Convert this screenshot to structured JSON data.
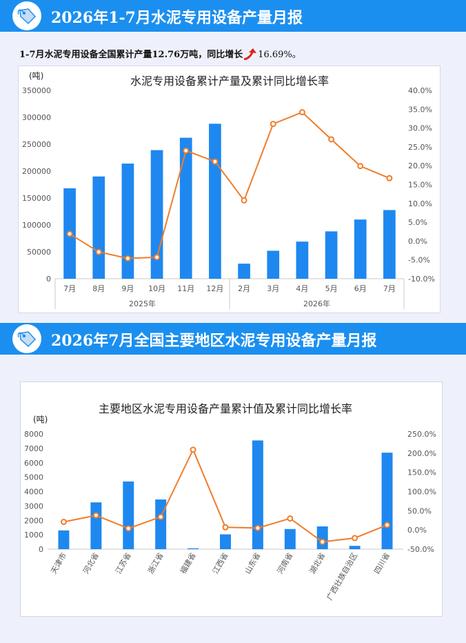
{
  "banners": {
    "top_title": "2026年1-7月水泥专用设备产量月报",
    "bottom_title": "2026年7月全国主要地区水泥专用设备产量月报"
  },
  "summary": {
    "text": "1-7月水泥专用设备全国累计产量12.76万吨，同比增长",
    "percent": "16.69%。"
  },
  "colors": {
    "bar": "#1e88f0",
    "line": "#f07c2a",
    "banner": "#1b8ff0"
  },
  "icons": {
    "badge": "price-tag-icon",
    "trend": "up-arrow-icon"
  },
  "chart_data": [
    {
      "type": "bar",
      "title": "水泥专用设备累计产量及累计同比增长率",
      "ylabel": "(吨)",
      "categories": [
        "7月",
        "8月",
        "9月",
        "10月",
        "11月",
        "12月",
        "2月",
        "3月",
        "4月",
        "5月",
        "6月",
        "7月"
      ],
      "groups": [
        {
          "label": "2025年",
          "count": 6
        },
        {
          "label": "2026年",
          "count": 6
        }
      ],
      "series": [
        {
          "axis": "left",
          "type": "bar",
          "values": [
            168000,
            190000,
            214000,
            239000,
            262000,
            288000,
            28000,
            52000,
            69000,
            88000,
            110000,
            127600
          ]
        },
        {
          "axis": "right",
          "type": "line",
          "values": [
            1.9,
            -2.9,
            -4.6,
            -4.3,
            24.0,
            21.1,
            10.8,
            31.1,
            34.2,
            27.0,
            19.9,
            16.69
          ]
        }
      ],
      "ylim": [
        0,
        350000
      ],
      "yticks": [
        "350000",
        "300000",
        "250000",
        "200000",
        "150000",
        "100000",
        "50000",
        "0"
      ],
      "y2lim": [
        -10,
        40
      ],
      "y2ticks": [
        "40.0%",
        "35.0%",
        "30.0%",
        "25.0%",
        "20.0%",
        "15.0%",
        "10.0%",
        "5.0%",
        "0.0%",
        "-5.0%",
        "-10.0%"
      ]
    },
    {
      "type": "bar",
      "title": "主要地区水泥专用设备产量累计值及累计同比增长率",
      "ylabel": "(吨)",
      "categories": [
        "天津市",
        "河北省",
        "江苏省",
        "浙江省",
        "福建省",
        "江西省",
        "山东省",
        "河南省",
        "湖北省",
        "广西壮族自治区",
        "四川省"
      ],
      "series": [
        {
          "axis": "left",
          "type": "bar",
          "values": [
            1300,
            3250,
            4700,
            3450,
            60,
            1030,
            7550,
            1400,
            1580,
            230,
            6700
          ]
        },
        {
          "axis": "right",
          "type": "line",
          "values": [
            21,
            38,
            4,
            34,
            209,
            7,
            5,
            30,
            -31,
            -21,
            13
          ]
        }
      ],
      "ylim": [
        0,
        8000
      ],
      "yticks": [
        "8000",
        "7000",
        "6000",
        "5000",
        "4000",
        "3000",
        "2000",
        "1000",
        "0"
      ],
      "y2lim": [
        -50,
        250
      ],
      "y2ticks": [
        "250.0%",
        "200.0%",
        "150.0%",
        "100.0%",
        "50.0%",
        "0.0%",
        "-50.0%"
      ]
    }
  ]
}
